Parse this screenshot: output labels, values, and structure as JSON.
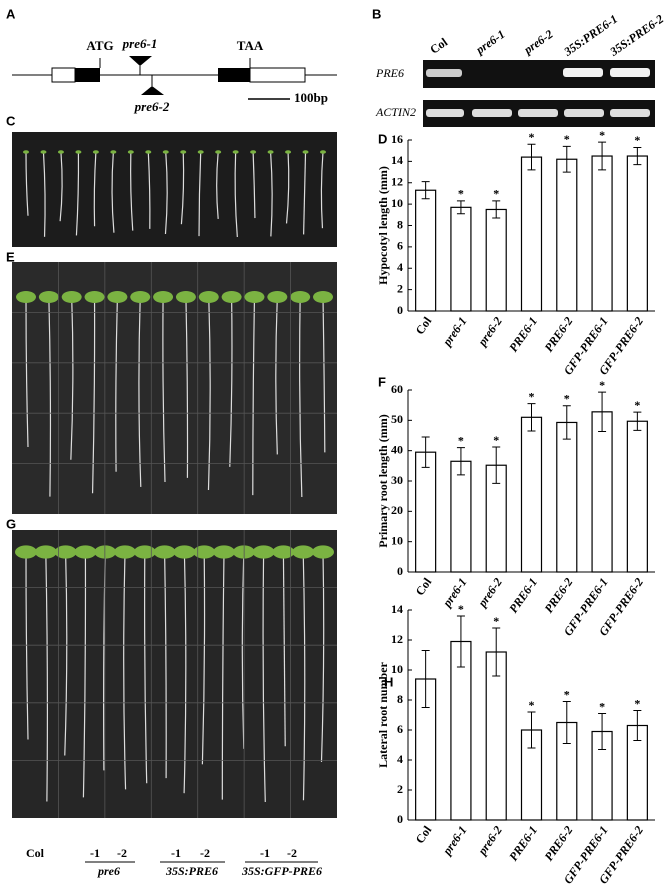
{
  "panel_labels": [
    "A",
    "B",
    "C",
    "D",
    "E",
    "F",
    "G",
    "H"
  ],
  "gene_diagram": {
    "labels": [
      "ATG",
      "pre6-1",
      "pre6-2",
      "TAA"
    ],
    "scale_bar": "100bp"
  },
  "gel": {
    "lanes": [
      "Col",
      "pre6-1",
      "pre6-2",
      "35S:PRE6-1",
      "35S:PRE6-2"
    ],
    "rows": [
      "PRE6",
      "ACTIN2"
    ]
  },
  "photo_labels": {
    "genotypes": [
      "Col",
      "-1",
      "-2",
      "-1",
      "-2",
      "-1",
      "-2"
    ],
    "groups": [
      "pre6",
      "35S:PRE6",
      "35S:GFP-PRE6"
    ]
  },
  "chart_data": [
    {
      "type": "bar",
      "y_label": "Hypocotyl length (mm)",
      "categories": [
        "Col",
        "pre6-1",
        "pre6-2",
        "PRE6-1",
        "PRE6-2",
        "GFP-PRE6-1",
        "GFP-PRE6-2"
      ],
      "values": [
        11.3,
        9.7,
        9.5,
        14.4,
        14.2,
        14.5,
        14.5
      ],
      "errors": [
        0.8,
        0.6,
        0.8,
        1.2,
        1.2,
        1.3,
        0.8
      ],
      "annotations": [
        null,
        "*",
        "*",
        "*",
        "*",
        "*",
        "*"
      ],
      "color": "#ffffff",
      "ylim": [
        0,
        16
      ],
      "yticks": [
        0,
        2,
        4,
        6,
        8,
        10,
        12,
        14,
        16
      ]
    },
    {
      "type": "bar",
      "y_label": "Primary root length (mm)",
      "categories": [
        "Col",
        "pre6-1",
        "pre6-2",
        "PRE6-1",
        "PRE6-2",
        "GFP-PRE6-1",
        "GFP-PRE6-2"
      ],
      "values": [
        39.5,
        36.5,
        35.2,
        51,
        49.3,
        52.8,
        49.7
      ],
      "errors": [
        5,
        4.5,
        6,
        4.5,
        5.5,
        6.5,
        3
      ],
      "annotations": [
        null,
        "*",
        "*",
        "*",
        "*",
        "*",
        "*"
      ],
      "color": "#ffffff",
      "ylim": [
        0,
        60
      ],
      "yticks": [
        0,
        10,
        20,
        30,
        40,
        50,
        60
      ]
    },
    {
      "type": "bar",
      "y_label": "Lateral root number",
      "categories": [
        "Col",
        "pre6-1",
        "pre6-2",
        "PRE6-1",
        "PRE6-2",
        "GFP-PRE6-1",
        "GFP-PRE6-2"
      ],
      "values": [
        9.4,
        11.9,
        11.2,
        6.0,
        6.5,
        5.9,
        6.3
      ],
      "errors": [
        1.9,
        1.7,
        1.6,
        1.2,
        1.4,
        1.2,
        1.0
      ],
      "annotations": [
        null,
        "*",
        "*",
        "*",
        "*",
        "*",
        "*"
      ],
      "color": "#ffffff",
      "ylim": [
        0,
        14
      ],
      "yticks": [
        0,
        2,
        4,
        6,
        8,
        10,
        12,
        14
      ]
    }
  ]
}
